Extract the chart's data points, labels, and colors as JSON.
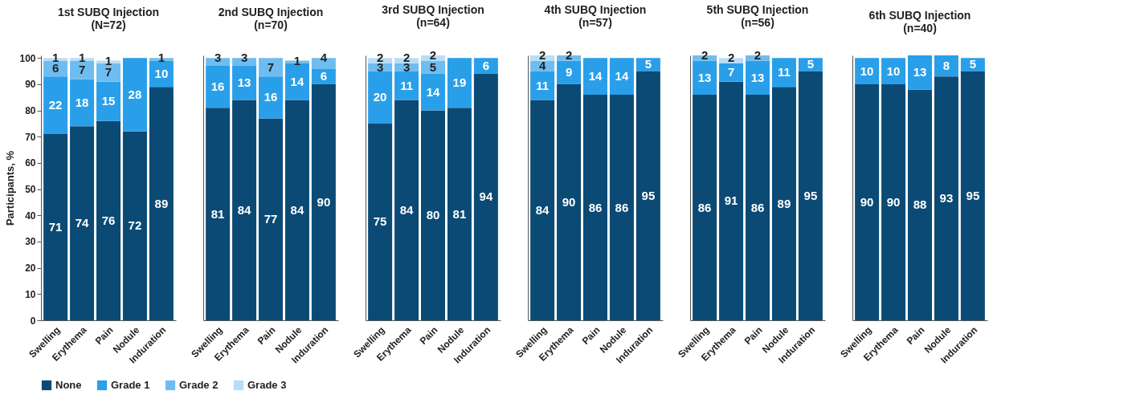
{
  "chart_data": [
    {
      "type": "bar",
      "title": "1st SUBQ Injection",
      "subtitle": "(N=72)",
      "ylabel": "Participants, %",
      "categories": [
        "Swelling",
        "Erythema",
        "Pain",
        "Nodule",
        "Induration"
      ],
      "stacked": true,
      "data_labels": true,
      "grid": false,
      "legend": "bottom",
      "ylim": [
        0,
        101
      ],
      "yticks": [
        0,
        10,
        20,
        30,
        40,
        50,
        60,
        70,
        80,
        90,
        100
      ],
      "series": [
        {
          "name": "None",
          "color": "#0b4a75",
          "values": [
            71,
            74,
            76,
            72,
            89
          ]
        },
        {
          "name": "Grade 1",
          "color": "#2a9fe9",
          "values": [
            22,
            18,
            15,
            28,
            10
          ]
        },
        {
          "name": "Grade 2",
          "color": "#6fbdf0",
          "values": [
            6,
            7,
            7,
            null,
            1
          ]
        },
        {
          "name": "Grade 3",
          "color": "#b7ddf7",
          "values": [
            1,
            1,
            1,
            null,
            null
          ]
        }
      ]
    },
    {
      "type": "bar",
      "title": "2nd SUBQ Injection",
      "subtitle": "(n=70)",
      "categories": [
        "Swelling",
        "Erythema",
        "Pain",
        "Nodule",
        "Induration"
      ],
      "stacked": true,
      "data_labels": true,
      "grid": false,
      "legend": "bottom",
      "tick_labels": "x",
      "ylim": [
        0,
        101
      ],
      "series": [
        {
          "name": "None",
          "color": "#0b4a75",
          "values": [
            81,
            84,
            77,
            84,
            90
          ]
        },
        {
          "name": "Grade 1",
          "color": "#2a9fe9",
          "values": [
            16,
            13,
            16,
            14,
            6
          ]
        },
        {
          "name": "Grade 2",
          "color": "#6fbdf0",
          "values": [
            3,
            3,
            7,
            1,
            4
          ]
        },
        {
          "name": "Grade 3",
          "color": "#b7ddf7",
          "values": [
            null,
            null,
            null,
            null,
            null
          ]
        }
      ]
    },
    {
      "type": "bar",
      "title": "3rd SUBQ Injection",
      "subtitle": "(n=64)",
      "categories": [
        "Swelling",
        "Erythema",
        "Pain",
        "Nodule",
        "Induration"
      ],
      "stacked": true,
      "data_labels": true,
      "grid": false,
      "legend": "bottom",
      "tick_labels": "x",
      "ylim": [
        0,
        101
      ],
      "series": [
        {
          "name": "None",
          "color": "#0b4a75",
          "values": [
            75,
            84,
            80,
            81,
            94
          ]
        },
        {
          "name": "Grade 1",
          "color": "#2a9fe9",
          "values": [
            20,
            11,
            14,
            19,
            6
          ]
        },
        {
          "name": "Grade 2",
          "color": "#6fbdf0",
          "values": [
            3,
            3,
            5,
            null,
            null
          ]
        },
        {
          "name": "Grade 3",
          "color": "#b7ddf7",
          "values": [
            2,
            2,
            2,
            null,
            null
          ]
        }
      ]
    },
    {
      "type": "bar",
      "title": "4th SUBQ Injection",
      "subtitle": "(n=57)",
      "categories": [
        "Swelling",
        "Erythema",
        "Pain",
        "Nodule",
        "Induration"
      ],
      "stacked": true,
      "data_labels": true,
      "grid": false,
      "legend": "bottom",
      "tick_labels": "x",
      "ylim": [
        0,
        101
      ],
      "series": [
        {
          "name": "None",
          "color": "#0b4a75",
          "values": [
            84,
            90,
            86,
            86,
            95
          ]
        },
        {
          "name": "Grade 1",
          "color": "#2a9fe9",
          "values": [
            11,
            9,
            14,
            14,
            5
          ]
        },
        {
          "name": "Grade 2",
          "color": "#6fbdf0",
          "values": [
            4,
            2,
            null,
            null,
            null
          ]
        },
        {
          "name": "Grade 3",
          "color": "#b7ddf7",
          "values": [
            2,
            null,
            null,
            null,
            null
          ]
        }
      ]
    },
    {
      "type": "bar",
      "title": "5th SUBQ Injection",
      "subtitle": "(n=56)",
      "categories": [
        "Swelling",
        "Erythema",
        "Pain",
        "Nodule",
        "Induration"
      ],
      "stacked": true,
      "data_labels": true,
      "grid": false,
      "legend": "bottom",
      "tick_labels": "x",
      "ylim": [
        0,
        101
      ],
      "series": [
        {
          "name": "None",
          "color": "#0b4a75",
          "values": [
            86,
            91,
            86,
            89,
            95
          ]
        },
        {
          "name": "Grade 1",
          "color": "#2a9fe9",
          "values": [
            13,
            7,
            13,
            11,
            5
          ]
        },
        {
          "name": "Grade 2",
          "color": "#6fbdf0",
          "values": [
            2,
            null,
            2,
            null,
            null
          ]
        },
        {
          "name": "Grade 3",
          "color": "#b7ddf7",
          "values": [
            null,
            2,
            null,
            null,
            null
          ]
        }
      ]
    },
    {
      "type": "bar",
      "title": "6th SUBQ Injection",
      "subtitle": "(n=40)",
      "categories": [
        "Swelling",
        "Erythema",
        "Pain",
        "Nodule",
        "Induration"
      ],
      "stacked": true,
      "data_labels": true,
      "grid": false,
      "legend": "bottom",
      "tick_labels": "x",
      "ylim": [
        0,
        101
      ],
      "series": [
        {
          "name": "None",
          "color": "#0b4a75",
          "values": [
            90,
            90,
            88,
            93,
            95
          ]
        },
        {
          "name": "Grade 1",
          "color": "#2a9fe9",
          "values": [
            10,
            10,
            13,
            8,
            5
          ]
        },
        {
          "name": "Grade 2",
          "color": "#6fbdf0",
          "values": [
            null,
            null,
            null,
            null,
            null
          ]
        },
        {
          "name": "Grade 3",
          "color": "#b7ddf7",
          "values": [
            null,
            null,
            null,
            null,
            null
          ]
        }
      ]
    }
  ]
}
